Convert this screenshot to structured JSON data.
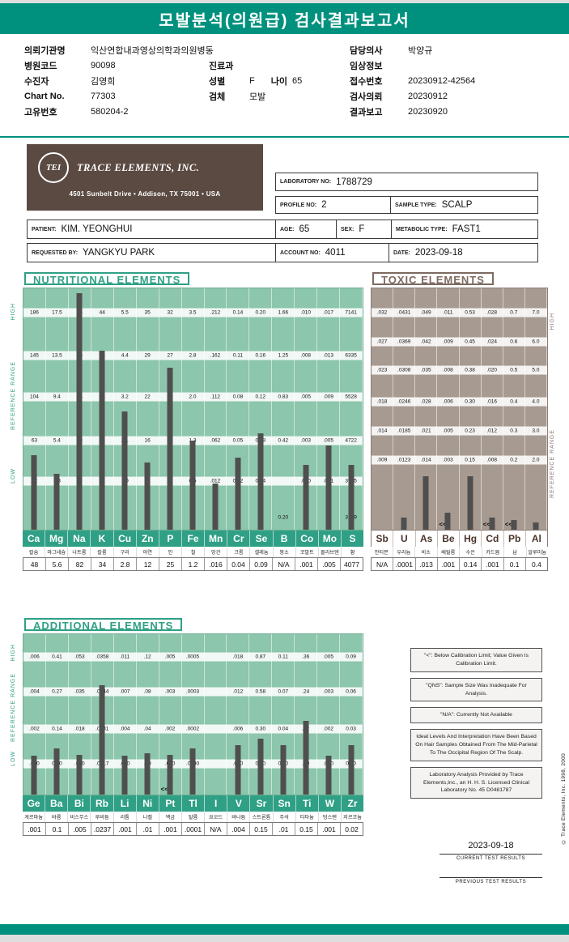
{
  "title": "모발분석(의원급) 검사결과보고서",
  "patient_info": {
    "left": [
      {
        "label": "의뢰기관명",
        "value": "익산연합내과영상의학과의원병동"
      },
      {
        "label": "병원코드",
        "value": "90098"
      },
      {
        "label": "수진자",
        "value": "김영희"
      },
      {
        "label": "Chart No.",
        "value": "77303"
      },
      {
        "label": "고유번호",
        "value": "580204-2"
      }
    ],
    "middle": [
      {
        "label": "진료과",
        "value": ""
      },
      {
        "label": "성별",
        "value": "F",
        "label2": "나이",
        "value2": "65"
      },
      {
        "label": "검체",
        "value": "모발"
      }
    ],
    "right": [
      {
        "label": "담당의사",
        "value": "박양규"
      },
      {
        "label": "임상정보",
        "value": ""
      },
      {
        "label": "접수번호",
        "value": "20230912-42564"
      },
      {
        "label": "검사의뢰",
        "value": "20230912"
      },
      {
        "label": "결과보고",
        "value": "20230920"
      }
    ]
  },
  "lab_card": {
    "logo_text": "TEI",
    "company": "TRACE ELEMENTS, INC.",
    "address": "4501 Sunbelt Drive  •  Addison, TX 75001  •  USA",
    "laboratory_no_label": "LABORATORY NO:",
    "laboratory_no": "1788729",
    "profile_no_label": "PROFILE NO:",
    "profile_no": "2",
    "sample_type_label": "SAMPLE TYPE:",
    "sample_type": "SCALP",
    "patient_label": "PATIENT:",
    "patient": "KIM. YEONGHUI",
    "age_label": "AGE:",
    "age": "65",
    "sex_label": "SEX:",
    "sex": "F",
    "metabolic_label": "METABOLIC TYPE:",
    "metabolic": "FAST1",
    "requested_label": "REQUESTED BY:",
    "requested_by": "YANGKYU PARK",
    "account_label": "ACCOUNT NO:",
    "account_no": "4011",
    "date_label": "DATE:",
    "date": "2023-09-18"
  },
  "chart_data": [
    {
      "type": "bar",
      "title": "NUTRITIONAL ELEMENTS",
      "axis_labels": [
        "HIGH",
        "REFERENCE RANGE",
        "LOW"
      ],
      "columns": [
        {
          "symbol": "Ca",
          "korean": "칼슘",
          "value": "48",
          "scale": [
            "186",
            "145",
            "104",
            "63",
            "22",
            ""
          ],
          "bar_pct": 31
        },
        {
          "symbol": "Mg",
          "korean": "마그네슘",
          "value": "5.6",
          "scale": [
            "17.5",
            "13.5",
            "9.4",
            "5.4",
            "1.8",
            ""
          ],
          "bar_pct": 23
        },
        {
          "symbol": "Na",
          "korean": "나트륨",
          "value": "82",
          "scale": [
            "65",
            "50",
            "34",
            "19",
            "3",
            ""
          ],
          "bar_pct": 98
        },
        {
          "symbol": "K",
          "korean": "칼륨",
          "value": "34",
          "scale": [
            "44",
            "34",
            "24",
            "14",
            "2",
            ""
          ],
          "bar_pct": 74
        },
        {
          "symbol": "Cu",
          "korean": "구리",
          "value": "2.8",
          "scale": [
            "5.5",
            "4.4",
            "3.2",
            "2.1",
            "1.0",
            ""
          ],
          "bar_pct": 49
        },
        {
          "symbol": "Zn",
          "korean": "아연",
          "value": "12",
          "scale": [
            "35",
            "29",
            "22",
            "16",
            "10",
            "3"
          ],
          "bar_pct": 28
        },
        {
          "symbol": "P",
          "korean": "인",
          "value": "25",
          "scale": [
            "32",
            "27",
            "21",
            "16",
            "10",
            "5"
          ],
          "bar_pct": 67
        },
        {
          "symbol": "Fe",
          "korean": "철",
          "value": "1.2",
          "scale": [
            "3.5",
            "2.8",
            "2.0",
            "1.3",
            "0.5",
            ""
          ],
          "bar_pct": 37
        },
        {
          "symbol": "Mn",
          "korean": "망간",
          "value": ".016",
          "scale": [
            ".212",
            ".162",
            ".112",
            ".062",
            ".012",
            ""
          ],
          "bar_pct": 19
        },
        {
          "symbol": "Cr",
          "korean": "크롬",
          "value": "0.04",
          "scale": [
            "0.14",
            "0.11",
            "0.08",
            "0.05",
            "0.02",
            ""
          ],
          "bar_pct": 30
        },
        {
          "symbol": "Se",
          "korean": "셀레늄",
          "value": "0.09",
          "scale": [
            "0.20",
            "0.16",
            "0.12",
            "0.08",
            "0.04",
            ""
          ],
          "bar_pct": 40
        },
        {
          "symbol": "B",
          "korean": "붕소",
          "value": "N/A",
          "scale": [
            "1.66",
            "1.25",
            "0.83",
            "0.42",
            "",
            "0.20"
          ],
          "bar_pct": 0
        },
        {
          "symbol": "Co",
          "korean": "코발트",
          "value": ".001",
          "scale": [
            ".010",
            ".008",
            ".005",
            ".003",
            ".000",
            ""
          ],
          "bar_pct": 27
        },
        {
          "symbol": "Mo",
          "korean": "몰리브덴",
          "value": ".005",
          "scale": [
            ".017",
            ".013",
            ".009",
            ".005",
            ".001",
            ""
          ],
          "bar_pct": 35
        },
        {
          "symbol": "S",
          "korean": "황",
          "value": "4077",
          "scale": [
            "7141",
            "6335",
            "5528",
            "4722",
            "3915",
            "3109"
          ],
          "bar_pct": 27
        }
      ]
    },
    {
      "type": "bar",
      "title": "TOXIC ELEMENTS",
      "axis_labels": [
        "HIGH",
        "REFERENCE RANGE"
      ],
      "columns": [
        {
          "symbol": "Sb",
          "korean": "안티몬",
          "value": "N/A",
          "scale": [
            ".032",
            ".027",
            ".023",
            ".018",
            ".014",
            ".009"
          ],
          "bar_pct": 0
        },
        {
          "symbol": "U",
          "korean": "우라늄",
          "value": ".0001",
          "scale": [
            ".0431",
            ".0369",
            ".0308",
            ".0246",
            ".0185",
            ".0123"
          ],
          "bar_pct": 5
        },
        {
          "symbol": "As",
          "korean": "비소",
          "value": ".013",
          "scale": [
            ".049",
            ".042",
            ".035",
            ".028",
            ".021",
            ".014"
          ],
          "bar_pct": 22
        },
        {
          "symbol": "Be",
          "korean": "베릴륨",
          "value": ".001",
          "scale": [
            ".011",
            ".009",
            ".008",
            ".006",
            ".005",
            ".003"
          ],
          "bar_pct": 7,
          "marker": "<<"
        },
        {
          "symbol": "Hg",
          "korean": "수은",
          "value": "0.14",
          "scale": [
            "0.53",
            "0.45",
            "0.38",
            "0.30",
            "0.23",
            "0.15"
          ],
          "bar_pct": 22
        },
        {
          "symbol": "Cd",
          "korean": "카드뮴",
          "value": ".001",
          "scale": [
            ".028",
            ".024",
            ".020",
            ".016",
            ".012",
            ".008"
          ],
          "bar_pct": 5,
          "marker": "<<"
        },
        {
          "symbol": "Pb",
          "korean": "납",
          "value": "0.1",
          "scale": [
            "0.7",
            "0.6",
            "0.5",
            "0.4",
            "0.3",
            "0.2"
          ],
          "bar_pct": 4,
          "marker": "<<"
        },
        {
          "symbol": "Al",
          "korean": "알루미늄",
          "value": "0.4",
          "scale": [
            "7.0",
            "6.0",
            "5.0",
            "4.0",
            "3.0",
            "2.0"
          ],
          "bar_pct": 3
        }
      ]
    },
    {
      "type": "bar",
      "title": "ADDITIONAL ELEMENTS",
      "axis_labels": [
        "HIGH",
        "REFERENCE RANGE",
        "LOW"
      ],
      "columns": [
        {
          "symbol": "Ge",
          "korean": "게르마늄",
          "value": ".001",
          "scale": [
            ".006",
            ".004",
            ".002",
            ".000"
          ],
          "bar_pct": 24
        },
        {
          "symbol": "Ba",
          "korean": "바륨",
          "value": "0.1",
          "scale": [
            "0.41",
            "0.27",
            "0.14",
            "0.00"
          ],
          "bar_pct": 29
        },
        {
          "symbol": "Bi",
          "korean": "비스무스",
          "value": ".005",
          "scale": [
            ".053",
            ".035",
            ".018",
            ".000"
          ],
          "bar_pct": 25
        },
        {
          "symbol": "Rb",
          "korean": "루비듐",
          "value": ".0237",
          "scale": [
            ".0358",
            ".0244",
            ".0131",
            ".0017"
          ],
          "bar_pct": 68
        },
        {
          "symbol": "Li",
          "korean": "리튬",
          "value": ".001",
          "scale": [
            ".011",
            ".007",
            ".004",
            ".000"
          ],
          "bar_pct": 24
        },
        {
          "symbol": "Ni",
          "korean": "니켈",
          "value": ".01",
          "scale": [
            ".12",
            ".08",
            ".04",
            ".00"
          ],
          "bar_pct": 26
        },
        {
          "symbol": "Pt",
          "korean": "백금",
          "value": ".001",
          "scale": [
            ".005",
            ".003",
            ".002",
            ".000"
          ],
          "bar_pct": 25,
          "marker": "<<"
        },
        {
          "symbol": "Tl",
          "korean": "탈륨",
          "value": ".0001",
          "scale": [
            ".0005",
            ".0003",
            ".0002",
            ".0000"
          ],
          "bar_pct": 29
        },
        {
          "symbol": "I",
          "korean": "요오드",
          "value": "N/A",
          "scale": [
            "",
            "",
            "",
            ""
          ],
          "bar_pct": 0
        },
        {
          "symbol": "V",
          "korean": "바나듐",
          "value": ".004",
          "scale": [
            ".018",
            ".012",
            ".006",
            ".000"
          ],
          "bar_pct": 31
        },
        {
          "symbol": "Sr",
          "korean": "스트론튬",
          "value": "0.15",
          "scale": [
            "0.87",
            "0.58",
            "0.30",
            "0.00"
          ],
          "bar_pct": 35
        },
        {
          "symbol": "Sn",
          "korean": "주석",
          "value": ".01",
          "scale": [
            "0.11",
            "0.07",
            "0.04",
            "0.00"
          ],
          "bar_pct": 31
        },
        {
          "symbol": "Ti",
          "korean": "티타늄",
          "value": "0.15",
          "scale": [
            ".36",
            ".24",
            ".12",
            ".00"
          ],
          "bar_pct": 46
        },
        {
          "symbol": "W",
          "korean": "텅스텐",
          "value": ".001",
          "scale": [
            ".005",
            ".003",
            ".002",
            ".000"
          ],
          "bar_pct": 24
        },
        {
          "symbol": "Zr",
          "korean": "지르코늄",
          "value": "0.02",
          "scale": [
            "0.09",
            "0.06",
            "0.03",
            "0.00"
          ],
          "bar_pct": 31
        }
      ]
    }
  ],
  "notes": [
    "\"<\": Below Calibration Limit; Value Given Is Calibration Limit.",
    "\"QNS\": Sample Size Was Inadequate For Analysis.",
    "\"N/A\": Currently Not Available",
    "Ideal Levels And Interpretation Have Been Based On Hair Samples Obtained From The Mid-Parietal To The Occipital Region Of The Scalp.",
    "Laboratory Analysis Provided by Trace Elements,Inc., an H. H. S. Licensed Clinical Laboratory No. 45 D0481787"
  ],
  "footer": {
    "date": "2023-09-18",
    "current_label": "CURRENT TEST RESULTS",
    "previous_label": "PREVIOUS TEST RESULTS",
    "copyright": "© Trace Elements, Inc. 1998, 2000"
  },
  "colors": {
    "teal": "#00917e",
    "chart_green": "#8cc6ac",
    "chart_taupe": "#a79a90",
    "bar_gray": "#4f4f4f",
    "brown_box": "#5a4a42"
  }
}
